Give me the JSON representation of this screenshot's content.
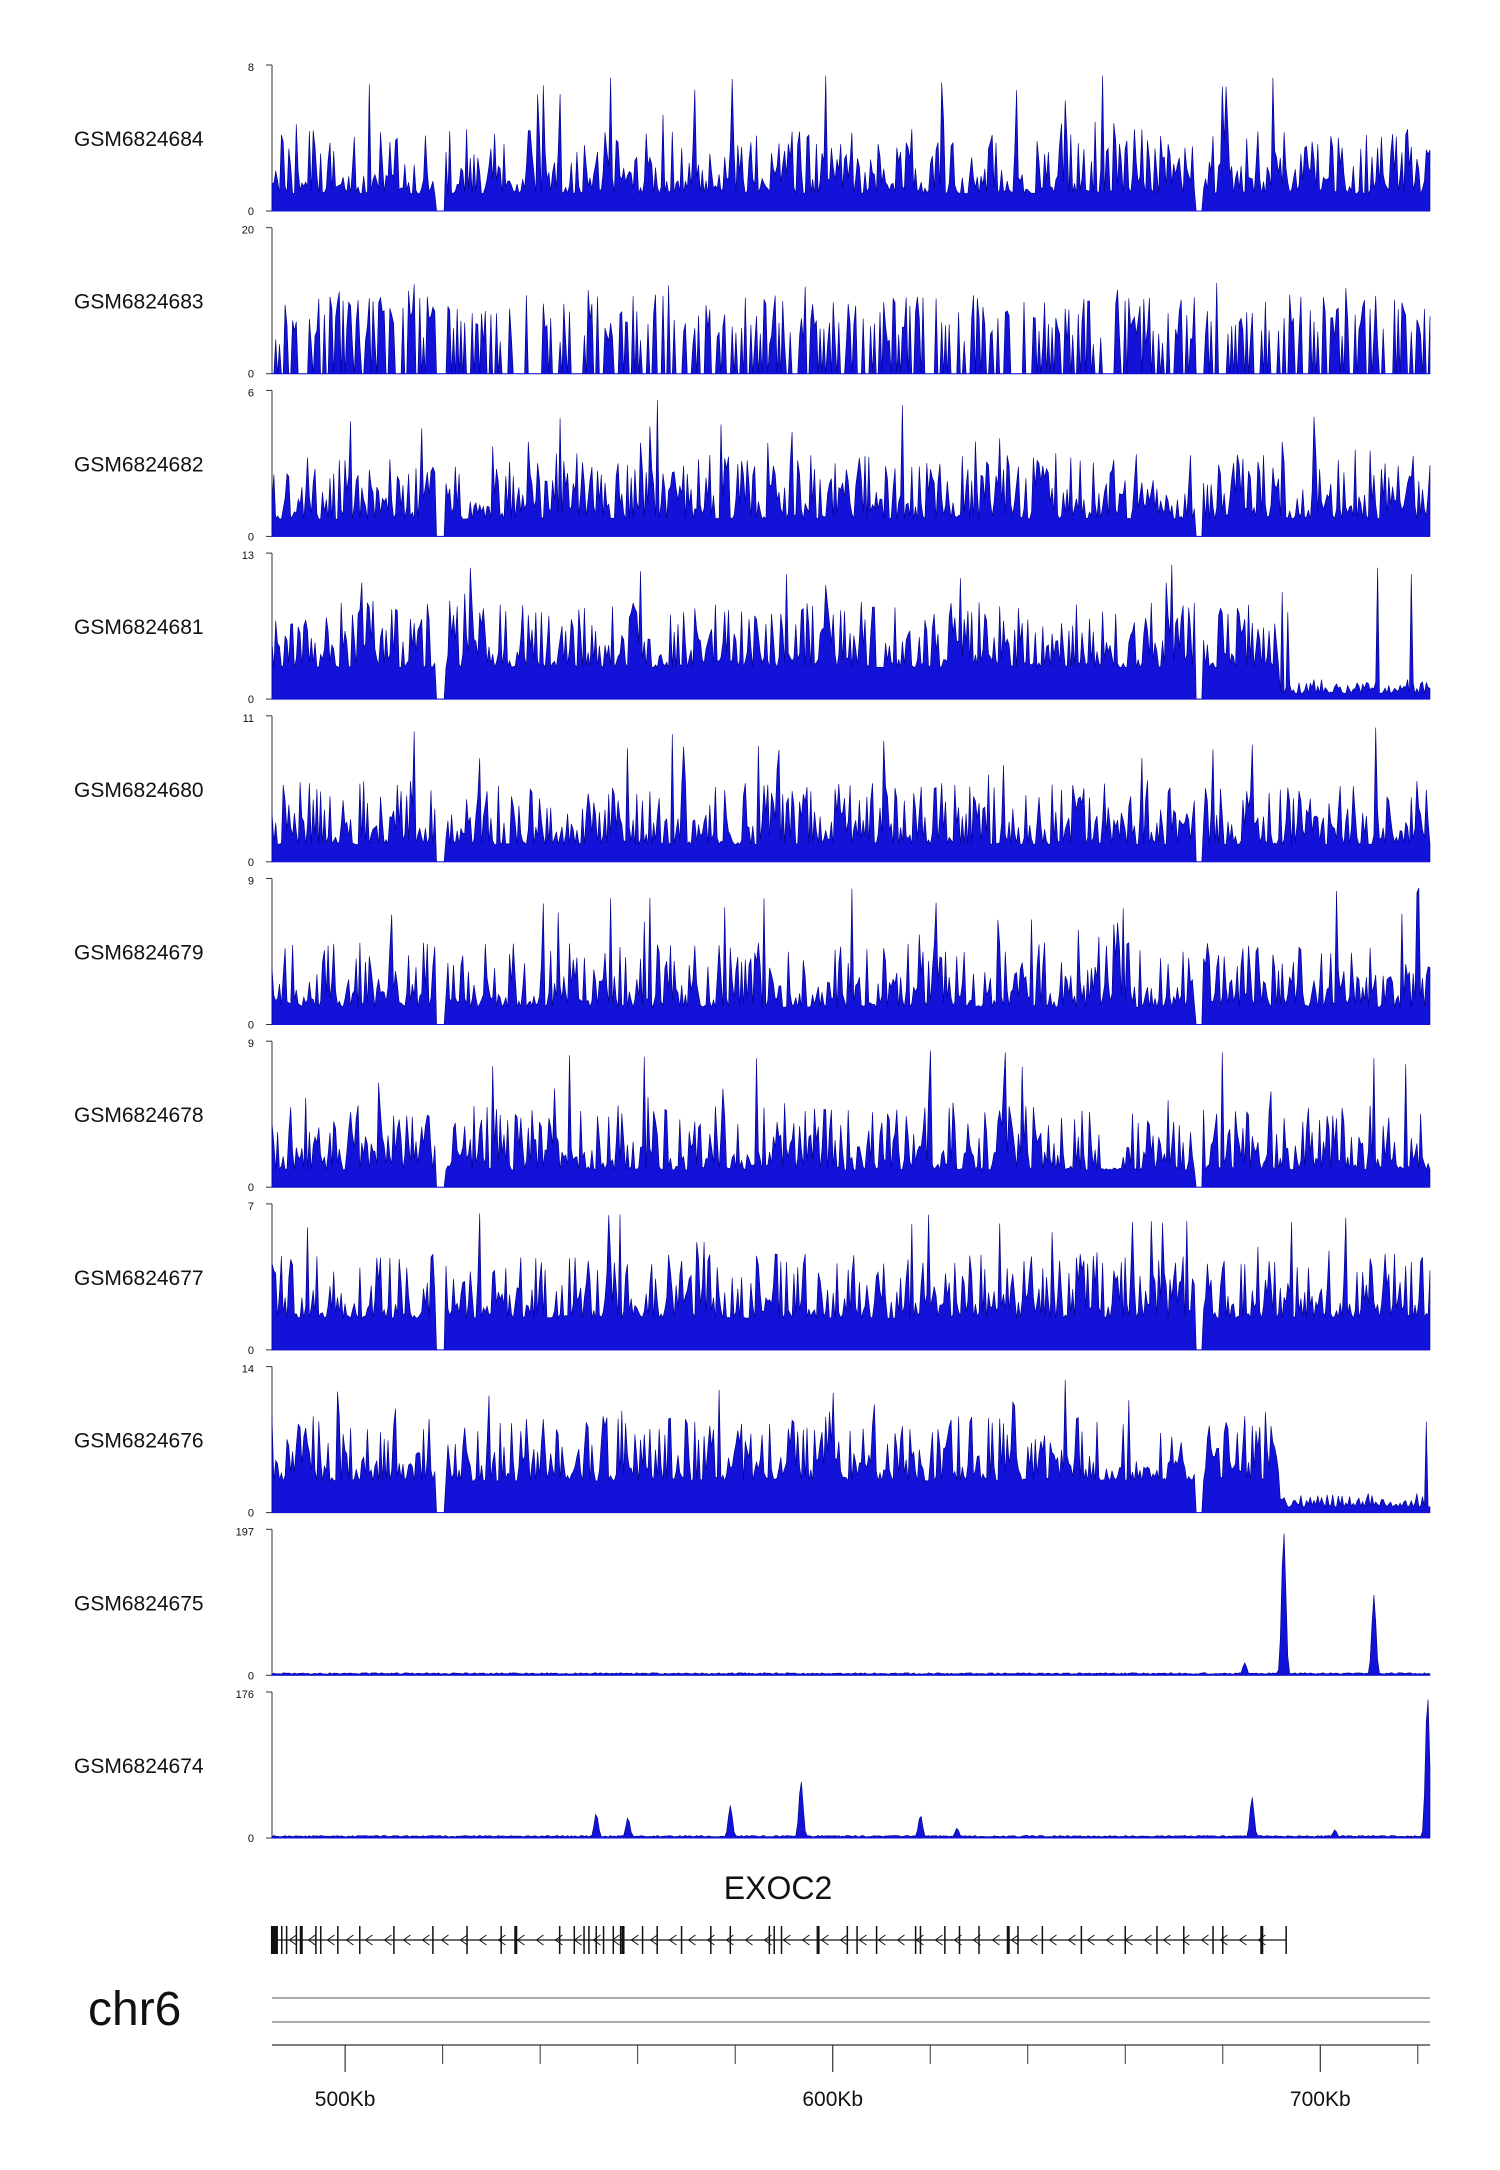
{
  "chart_data": {
    "type": "area",
    "colors": {
      "signal": "#1212d8",
      "signal_edge": "#000088",
      "axis": "#333333",
      "gene": "#111111"
    },
    "tracks": [
      {
        "name": "GSM6824684",
        "ymax": "8",
        "ymin": "0",
        "profile": "noisy"
      },
      {
        "name": "GSM6824683",
        "ymax": "20",
        "ymin": "0",
        "profile": "sparse"
      },
      {
        "name": "GSM6824682",
        "ymax": "6",
        "ymin": "0",
        "profile": "noisy"
      },
      {
        "name": "GSM6824681",
        "ymax": "13",
        "ymin": "0",
        "profile": "dense_decay"
      },
      {
        "name": "GSM6824680",
        "ymax": "11",
        "ymin": "0",
        "profile": "noisy"
      },
      {
        "name": "GSM6824679",
        "ymax": "9",
        "ymin": "0",
        "profile": "noisy"
      },
      {
        "name": "GSM6824678",
        "ymax": "9",
        "ymin": "0",
        "profile": "noisy"
      },
      {
        "name": "GSM6824677",
        "ymax": "7",
        "ymin": "0",
        "profile": "dense"
      },
      {
        "name": "GSM6824676",
        "ymax": "14",
        "ymin": "0",
        "profile": "dense_decay"
      },
      {
        "name": "GSM6824675",
        "ymax": "197",
        "ymin": "0",
        "profile": "peaks",
        "peaks": [
          {
            "x": 684.5,
            "h": 17
          },
          {
            "x": 692.5,
            "h": 197
          },
          {
            "x": 711,
            "h": 110
          }
        ]
      },
      {
        "name": "GSM6824674",
        "ymax": "176",
        "ymin": "0",
        "profile": "peaks",
        "peaks": [
          {
            "x": 551.5,
            "h": 30
          },
          {
            "x": 558,
            "h": 25
          },
          {
            "x": 579,
            "h": 40
          },
          {
            "x": 593.5,
            "h": 70
          },
          {
            "x": 618,
            "h": 28
          },
          {
            "x": 625.5,
            "h": 12
          },
          {
            "x": 686,
            "h": 50
          },
          {
            "x": 703,
            "h": 10
          },
          {
            "x": 722,
            "h": 176
          }
        ]
      }
    ],
    "x_range_kb": [
      485,
      722.5
    ],
    "gene": {
      "name": "EXOC2",
      "strand": "-",
      "start_kb": 485.5,
      "end_kb": 693,
      "exons_kb": [
        485.5,
        487,
        488,
        490,
        491,
        494,
        495,
        498.5,
        503,
        510,
        518,
        525,
        532,
        535,
        544,
        547,
        549,
        550,
        551.5,
        553,
        555,
        556.5,
        557,
        561,
        564,
        569,
        575,
        579,
        587,
        588,
        589.5,
        597,
        603,
        605,
        609,
        617,
        618,
        623,
        626,
        630,
        636,
        638,
        643,
        651,
        660,
        666.5,
        672,
        678,
        680,
        688,
        693
      ]
    },
    "chromosome": "chr6",
    "x_ticks": [
      {
        "kb": 500,
        "label": "500Kb"
      },
      {
        "kb": 600,
        "label": "600Kb"
      },
      {
        "kb": 700,
        "label": "700Kb"
      }
    ],
    "minor_ticks_kb": [
      520,
      540,
      560,
      580,
      620,
      640,
      660,
      680,
      720
    ]
  }
}
